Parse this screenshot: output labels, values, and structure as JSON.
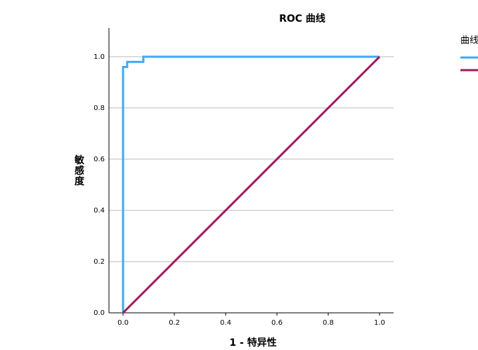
{
  "chart_data": {
    "type": "line",
    "title": "ROC 曲线",
    "x_label": "1 - 特异性",
    "y_label": "敏感度",
    "legend_title": "曲线",
    "legend_position": "upper right",
    "series": [
      {
        "color": "#3fa9f5",
        "x": [
          0,
          0,
          0.016,
          0.016,
          0.079,
          0.079,
          1
        ],
        "values": [
          0,
          0.96,
          0.96,
          0.98,
          0.98,
          1,
          1
        ]
      },
      {
        "color": "#a0195a",
        "x": [
          0,
          1
        ],
        "values": [
          0,
          1
        ]
      }
    ],
    "xlim": [
      -0.055,
      1.055
    ],
    "ylim": [
      0,
      1.112
    ],
    "xticks": [
      {
        "value": 0,
        "label": "0.0"
      },
      {
        "value": 0.2,
        "label": "0.2"
      },
      {
        "value": 0.4,
        "label": "0.4"
      },
      {
        "value": 0.6,
        "label": "0.6"
      },
      {
        "value": 0.8,
        "label": "0.8"
      },
      {
        "value": 1,
        "label": "1.0"
      }
    ],
    "yticks": [
      {
        "value": 0,
        "label": "0.0"
      },
      {
        "value": 0.2,
        "label": "0.2"
      },
      {
        "value": 0.4,
        "label": "0.4"
      },
      {
        "value": 0.6,
        "label": "0.6"
      },
      {
        "value": 0.8,
        "label": "0.8"
      },
      {
        "value": 1,
        "label": "1.0"
      }
    ],
    "grid": true
  }
}
